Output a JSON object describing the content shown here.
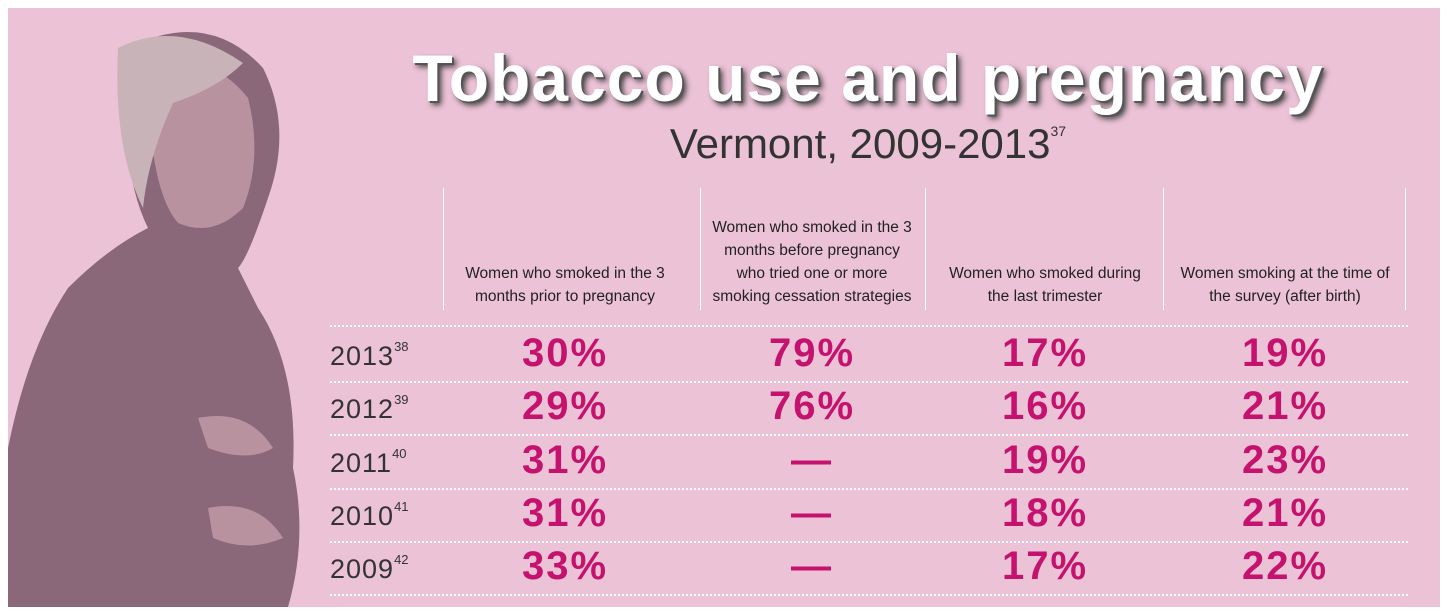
{
  "title": "Tobacco use and pregnancy",
  "subtitle": "Vermont, 2009-2013",
  "subtitle_note": "37",
  "table": {
    "header": [
      "Women who smoked in the 3 months prior to pregnancy",
      "Women who smoked in the 3 months before pregnancy who tried one or more smoking cessation strategies",
      "Women who smoked during the last trimester",
      "Women smoking at the time of the survey (after birth)"
    ],
    "rows": [
      {
        "year": "2013",
        "note": "38",
        "cells": [
          "30%",
          "79%",
          "17%",
          "19%"
        ]
      },
      {
        "year": "2012",
        "note": "39",
        "cells": [
          "29%",
          "76%",
          "16%",
          "21%"
        ]
      },
      {
        "year": "2011",
        "note": "40",
        "cells": [
          "31%",
          "—",
          "19%",
          "23%"
        ]
      },
      {
        "year": "2010",
        "note": "41",
        "cells": [
          "31%",
          "—",
          "18%",
          "21%"
        ]
      },
      {
        "year": "2009",
        "note": "42",
        "cells": [
          "33%",
          "—",
          "17%",
          "22%"
        ]
      }
    ]
  }
}
